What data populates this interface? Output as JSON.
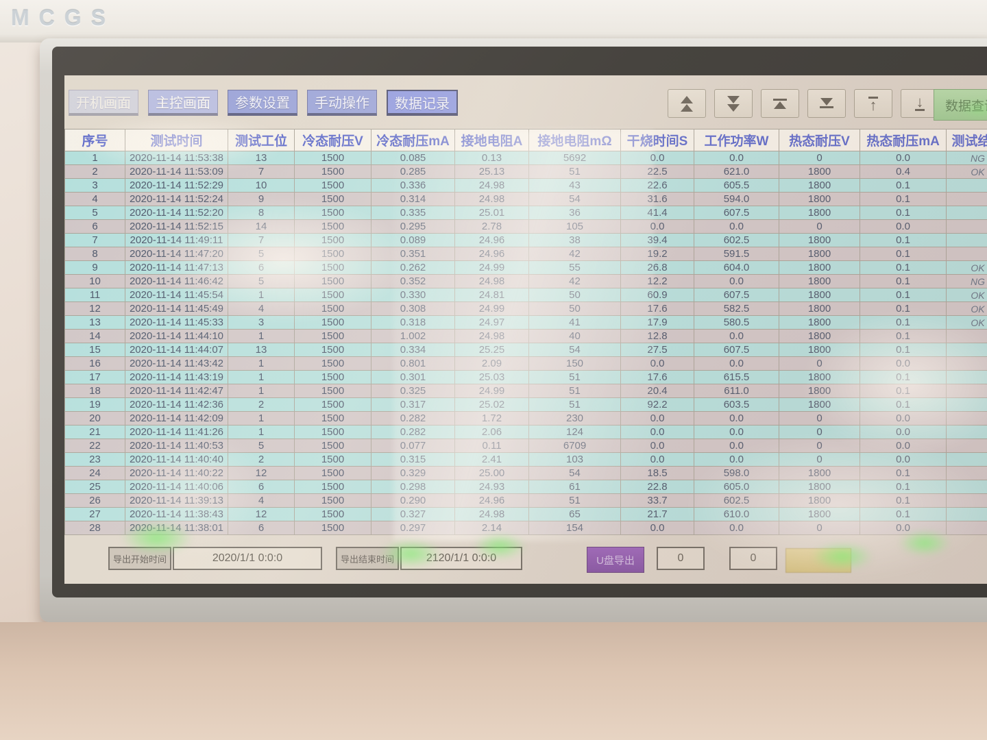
{
  "brand": "MCGS",
  "nav": {
    "tabs": [
      {
        "label": "开机画面",
        "active": false
      },
      {
        "label": "主控画面",
        "active": false
      },
      {
        "label": "参数设置",
        "active": false
      },
      {
        "label": "手动操作",
        "active": false
      },
      {
        "label": "数据记录",
        "active": true
      }
    ],
    "pager_buttons": [
      {
        "name": "page-up-button",
        "icon": "double-triangle-up-icon"
      },
      {
        "name": "page-down-button",
        "icon": "double-triangle-down-icon"
      },
      {
        "name": "jump-top-button",
        "icon": "triangle-up-bar-icon"
      },
      {
        "name": "jump-bottom-button",
        "icon": "triangle-down-bar-icon"
      },
      {
        "name": "row-up-button",
        "icon": "arrow-up-bar-icon"
      },
      {
        "name": "row-down-button",
        "icon": "arrow-down-bar-icon"
      }
    ],
    "query_button_label": "数据查询"
  },
  "table": {
    "headers": [
      "序号",
      "测试时间",
      "测试工位",
      "冷态耐压V",
      "冷态耐压mA",
      "接地电阻A",
      "接地电阻mΩ",
      "干烧时间S",
      "工作功率W",
      "热态耐压V",
      "热态耐压mA",
      "测试结果"
    ],
    "rows": [
      [
        "1",
        "2020-11-14 11:53:38",
        "13",
        "1500",
        "0.085",
        "0.13",
        "5692",
        "0.0",
        "0.0",
        "0",
        "0.0",
        "NG"
      ],
      [
        "2",
        "2020-11-14 11:53:09",
        "7",
        "1500",
        "0.285",
        "25.13",
        "51",
        "22.5",
        "621.0",
        "1800",
        "0.4",
        "OK"
      ],
      [
        "3",
        "2020-11-14 11:52:29",
        "10",
        "1500",
        "0.336",
        "24.98",
        "43",
        "22.6",
        "605.5",
        "1800",
        "0.1",
        ""
      ],
      [
        "4",
        "2020-11-14 11:52:24",
        "9",
        "1500",
        "0.314",
        "24.98",
        "54",
        "31.6",
        "594.0",
        "1800",
        "0.1",
        ""
      ],
      [
        "5",
        "2020-11-14 11:52:20",
        "8",
        "1500",
        "0.335",
        "25.01",
        "36",
        "41.4",
        "607.5",
        "1800",
        "0.1",
        ""
      ],
      [
        "6",
        "2020-11-14 11:52:15",
        "14",
        "1500",
        "0.295",
        "2.78",
        "105",
        "0.0",
        "0.0",
        "0",
        "0.0",
        ""
      ],
      [
        "7",
        "2020-11-14 11:49:11",
        "7",
        "1500",
        "0.089",
        "24.96",
        "38",
        "39.4",
        "602.5",
        "1800",
        "0.1",
        ""
      ],
      [
        "8",
        "2020-11-14 11:47:20",
        "5",
        "1500",
        "0.351",
        "24.96",
        "42",
        "19.2",
        "591.5",
        "1800",
        "0.1",
        ""
      ],
      [
        "9",
        "2020-11-14 11:47:13",
        "6",
        "1500",
        "0.262",
        "24.99",
        "55",
        "26.8",
        "604.0",
        "1800",
        "0.1",
        "OK"
      ],
      [
        "10",
        "2020-11-14 11:46:42",
        "5",
        "1500",
        "0.352",
        "24.98",
        "42",
        "12.2",
        "0.0",
        "1800",
        "0.1",
        "NG"
      ],
      [
        "11",
        "2020-11-14 11:45:54",
        "1",
        "1500",
        "0.330",
        "24.81",
        "50",
        "60.9",
        "607.5",
        "1800",
        "0.1",
        "OK"
      ],
      [
        "12",
        "2020-11-14 11:45:49",
        "4",
        "1500",
        "0.308",
        "24.99",
        "50",
        "17.6",
        "582.5",
        "1800",
        "0.1",
        "OK"
      ],
      [
        "13",
        "2020-11-14 11:45:33",
        "3",
        "1500",
        "0.318",
        "24.97",
        "41",
        "17.9",
        "580.5",
        "1800",
        "0.1",
        "OK"
      ],
      [
        "14",
        "2020-11-14 11:44:10",
        "1",
        "1500",
        "1.002",
        "24.98",
        "40",
        "12.8",
        "0.0",
        "1800",
        "0.1",
        ""
      ],
      [
        "15",
        "2020-11-14 11:44:07",
        "13",
        "1500",
        "0.334",
        "25.25",
        "54",
        "27.5",
        "607.5",
        "1800",
        "0.1",
        ""
      ],
      [
        "16",
        "2020-11-14 11:43:42",
        "1",
        "1500",
        "0.801",
        "2.09",
        "150",
        "0.0",
        "0.0",
        "0",
        "0.0",
        ""
      ],
      [
        "17",
        "2020-11-14 11:43:19",
        "1",
        "1500",
        "0.301",
        "25.03",
        "51",
        "17.6",
        "615.5",
        "1800",
        "0.1",
        ""
      ],
      [
        "18",
        "2020-11-14 11:42:47",
        "1",
        "1500",
        "0.325",
        "24.99",
        "51",
        "20.4",
        "611.0",
        "1800",
        "0.1",
        ""
      ],
      [
        "19",
        "2020-11-14 11:42:36",
        "2",
        "1500",
        "0.317",
        "25.02",
        "51",
        "92.2",
        "603.5",
        "1800",
        "0.1",
        ""
      ],
      [
        "20",
        "2020-11-14 11:42:09",
        "1",
        "1500",
        "0.282",
        "1.72",
        "230",
        "0.0",
        "0.0",
        "0",
        "0.0",
        ""
      ],
      [
        "21",
        "2020-11-14 11:41:26",
        "1",
        "1500",
        "0.282",
        "2.06",
        "124",
        "0.0",
        "0.0",
        "0",
        "0.0",
        ""
      ],
      [
        "22",
        "2020-11-14 11:40:53",
        "5",
        "1500",
        "0.077",
        "0.11",
        "6709",
        "0.0",
        "0.0",
        "0",
        "0.0",
        ""
      ],
      [
        "23",
        "2020-11-14 11:40:40",
        "2",
        "1500",
        "0.315",
        "2.41",
        "103",
        "0.0",
        "0.0",
        "0",
        "0.0",
        ""
      ],
      [
        "24",
        "2020-11-14 11:40:22",
        "12",
        "1500",
        "0.329",
        "25.00",
        "54",
        "18.5",
        "598.0",
        "1800",
        "0.1",
        ""
      ],
      [
        "25",
        "2020-11-14 11:40:06",
        "6",
        "1500",
        "0.298",
        "24.93",
        "61",
        "22.8",
        "605.0",
        "1800",
        "0.1",
        ""
      ],
      [
        "26",
        "2020-11-14 11:39:13",
        "4",
        "1500",
        "0.290",
        "24.96",
        "51",
        "33.7",
        "602.5",
        "1800",
        "0.1",
        ""
      ],
      [
        "27",
        "2020-11-14 11:38:43",
        "12",
        "1500",
        "0.327",
        "24.98",
        "65",
        "21.7",
        "610.0",
        "1800",
        "0.1",
        ""
      ],
      [
        "28",
        "2020-11-14 11:38:01",
        "6",
        "1500",
        "0.297",
        "2.14",
        "154",
        "0.0",
        "0.0",
        "0",
        "0.0",
        ""
      ]
    ]
  },
  "footer": {
    "export_start_label": "导出开始时间",
    "export_start_value": "2020/1/1 0:0:0",
    "export_end_label": "导出结束时间",
    "export_end_value": "2120/1/1 0:0:0",
    "usb_export_label": "U盘导出",
    "counter1": "0",
    "counter2": "0",
    "yellow_button_label": ""
  },
  "colors": {
    "header_text": "#4252c4",
    "tab_blue": "#8a96d5",
    "tab_active": "#7e8bdd",
    "row_cyan": "#a9dcda",
    "row_gray": "#c9bfc1",
    "query_green": "#8cc281",
    "usb_purple": "#6f3796",
    "yellow_button": "#cdb75e"
  }
}
